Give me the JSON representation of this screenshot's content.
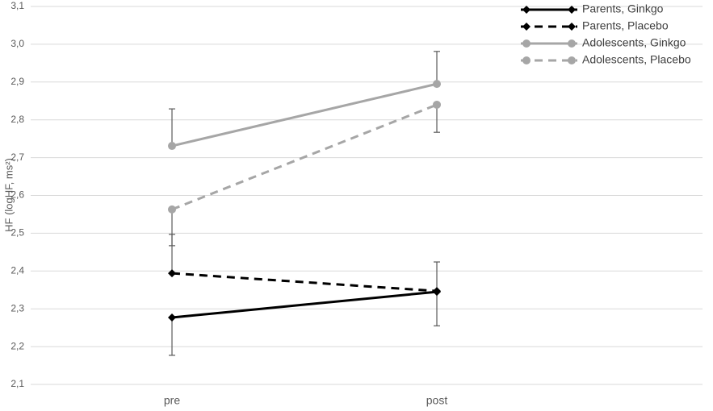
{
  "chart_data": {
    "type": "line",
    "y_label": "HF (logHF, ms²)",
    "categories": [
      "pre",
      "post"
    ],
    "series": [
      {
        "name": "Parents, Ginkgo",
        "color": "#000000",
        "dashed": false,
        "marker": "diamond",
        "values": [
          2.277,
          2.345
        ],
        "errors": [
          0.1,
          0.09
        ],
        "error_direction": "down"
      },
      {
        "name": "Parents, Placebo",
        "color": "#000000",
        "dashed": true,
        "marker": "diamond",
        "values": [
          2.394,
          2.347
        ],
        "errors": [
          0.103,
          0.077
        ],
        "error_direction": "up"
      },
      {
        "name": "Adolescents, Ginkgo",
        "color": "#a6a6a6",
        "dashed": false,
        "marker": "circle",
        "values": [
          2.731,
          2.895
        ],
        "errors": [
          0.098,
          0.086
        ],
        "error_direction": "up"
      },
      {
        "name": "Adolescents, Placebo",
        "color": "#a6a6a6",
        "dashed": true,
        "marker": "circle",
        "values": [
          2.563,
          2.84
        ],
        "errors": [
          0.096,
          0.073
        ],
        "error_direction": "down"
      }
    ],
    "error_color": "#595959",
    "ylim": [
      2.1,
      3.1
    ],
    "yticks": [
      {
        "value": 2.1,
        "label": "2,1"
      },
      {
        "value": 2.2,
        "label": "2,2"
      },
      {
        "value": 2.3,
        "label": "2,3"
      },
      {
        "value": 2.4,
        "label": "2,4"
      },
      {
        "value": 2.5,
        "label": "2,5"
      },
      {
        "value": 2.6,
        "label": "2,6"
      },
      {
        "value": 2.7,
        "label": "2,7"
      },
      {
        "value": 2.8,
        "label": "2,8"
      },
      {
        "value": 2.9,
        "label": "2,9"
      },
      {
        "value": 3.0,
        "label": "3,0"
      },
      {
        "value": 3.1,
        "label": "3,1"
      }
    ],
    "grid": true,
    "legend": "top-right"
  }
}
